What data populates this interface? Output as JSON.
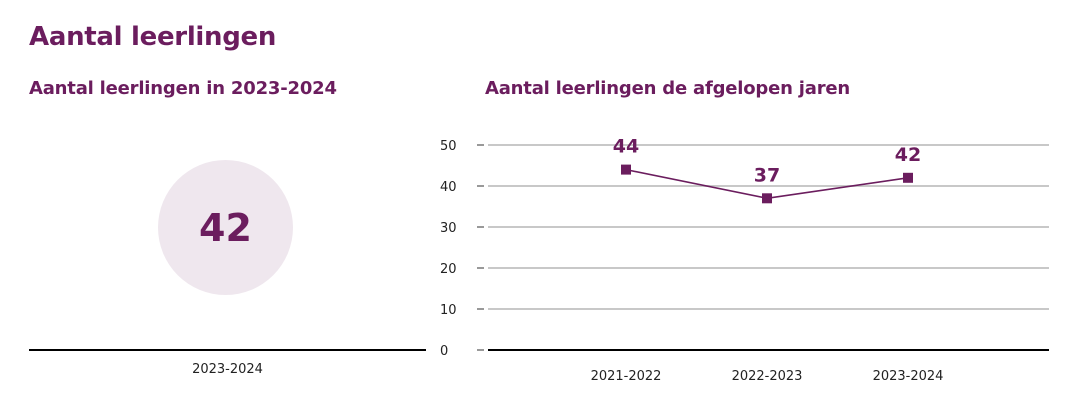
{
  "page": {
    "title": "Aantal leerlingen"
  },
  "current_year": {
    "title": "Aantal leerlingen in 2023-2024",
    "value": "42",
    "category_label": "2023-2024"
  },
  "history": {
    "title": "Aantal leerlingen de afgelopen jaren"
  },
  "colors": {
    "accent": "#6b1d5e",
    "circle_fill": "#efe7ee",
    "grid": "#c8c8c8",
    "axis": "#000000"
  },
  "chart_data": [
    {
      "type": "bar",
      "title": "Aantal leerlingen in 2023-2024",
      "categories": [
        "2023-2024"
      ],
      "values": [
        42
      ]
    },
    {
      "type": "line",
      "title": "Aantal leerlingen de afgelopen jaren",
      "categories": [
        "2021-2022",
        "2022-2023",
        "2023-2024"
      ],
      "series": [
        {
          "name": "Aantal leerlingen",
          "values": [
            44,
            37,
            42
          ]
        }
      ],
      "ylim": [
        0,
        50
      ],
      "yticks": [
        0,
        10,
        20,
        30,
        40,
        50
      ],
      "grid": true,
      "xlabel": "",
      "ylabel": ""
    }
  ]
}
